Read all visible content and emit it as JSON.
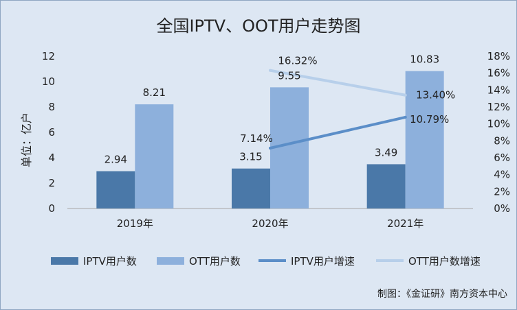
{
  "chart_data": {
    "type": "bar",
    "title": "全国IPTV、OOT用户走势图",
    "ylabel": "单位：亿户",
    "categories": [
      "2019年",
      "2020年",
      "2021年"
    ],
    "ylim": [
      0,
      12
    ],
    "yticks": [
      0,
      2,
      4,
      6,
      8,
      10,
      12
    ],
    "y2lim": [
      0,
      0.18
    ],
    "y2ticks": [
      "0%",
      "2%",
      "4%",
      "6%",
      "8%",
      "10%",
      "12%",
      "14%",
      "16%",
      "18%"
    ],
    "series": [
      {
        "name": "IPTV用户数",
        "kind": "bar",
        "axis": "left",
        "color": "#4a78a8",
        "values": [
          2.94,
          3.15,
          3.49
        ],
        "labels": [
          "2.94",
          "3.15",
          "3.49"
        ]
      },
      {
        "name": "OTT用户数",
        "kind": "bar",
        "axis": "left",
        "color": "#8db0dc",
        "values": [
          8.21,
          9.55,
          10.83
        ],
        "labels": [
          "8.21",
          "9.55",
          "10.83"
        ]
      },
      {
        "name": "IPTV用户增速",
        "kind": "line",
        "axis": "right",
        "color": "#5b8ec8",
        "values": [
          null,
          0.0714,
          0.1079
        ],
        "labels": [
          null,
          "7.14%",
          "10.79%"
        ]
      },
      {
        "name": "OTT用户数增速",
        "kind": "line",
        "axis": "right",
        "color": "#b7cfea",
        "values": [
          null,
          0.1632,
          0.134
        ],
        "labels": [
          null,
          "16.32%",
          "13.40%"
        ]
      }
    ],
    "grid": false,
    "legend": "bottom"
  },
  "credit": "制图：《金证研》南方资本中心"
}
